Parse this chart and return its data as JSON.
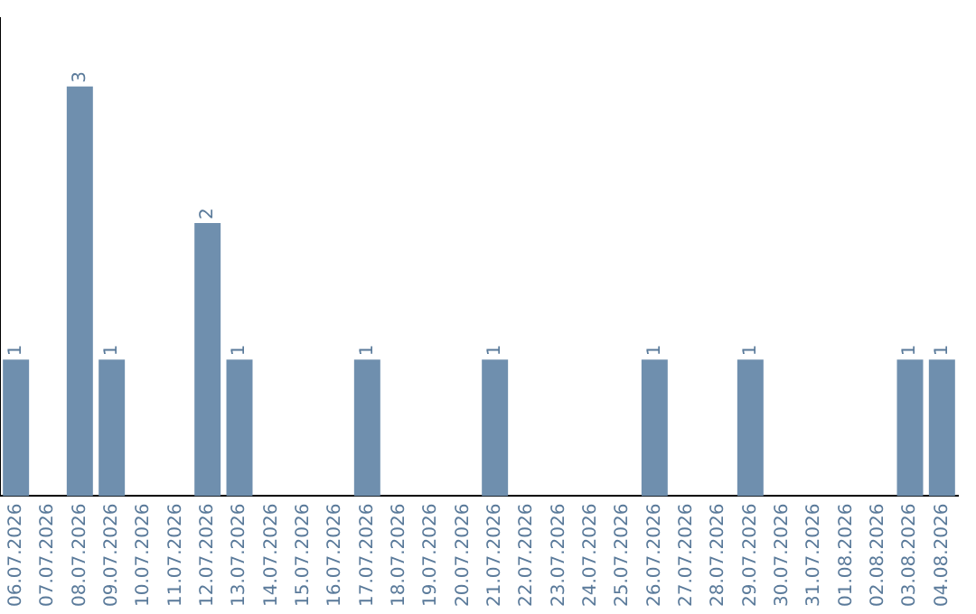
{
  "chart_data": {
    "type": "bar",
    "categories": [
      "06.07.2026",
      "07.07.2026",
      "08.07.2026",
      "09.07.2026",
      "10.07.2026",
      "11.07.2026",
      "12.07.2026",
      "13.07.2026",
      "14.07.2026",
      "15.07.2026",
      "16.07.2026",
      "17.07.2026",
      "18.07.2026",
      "19.07.2026",
      "20.07.2026",
      "21.07.2026",
      "22.07.2026",
      "23.07.2026",
      "24.07.2026",
      "25.07.2026",
      "26.07.2026",
      "27.07.2026",
      "28.07.2026",
      "29.07.2026",
      "30.07.2026",
      "31.07.2026",
      "01.08.2026",
      "02.08.2026",
      "03.08.2026",
      "04.08.2026"
    ],
    "values": [
      1,
      null,
      3,
      1,
      null,
      null,
      2,
      1,
      null,
      null,
      null,
      1,
      null,
      null,
      null,
      1,
      null,
      null,
      null,
      null,
      1,
      null,
      null,
      1,
      null,
      null,
      null,
      null,
      1,
      1
    ],
    "color": "#6f8fae",
    "data_labels": true,
    "grid": false,
    "legend": false,
    "tick_labels": "x"
  }
}
